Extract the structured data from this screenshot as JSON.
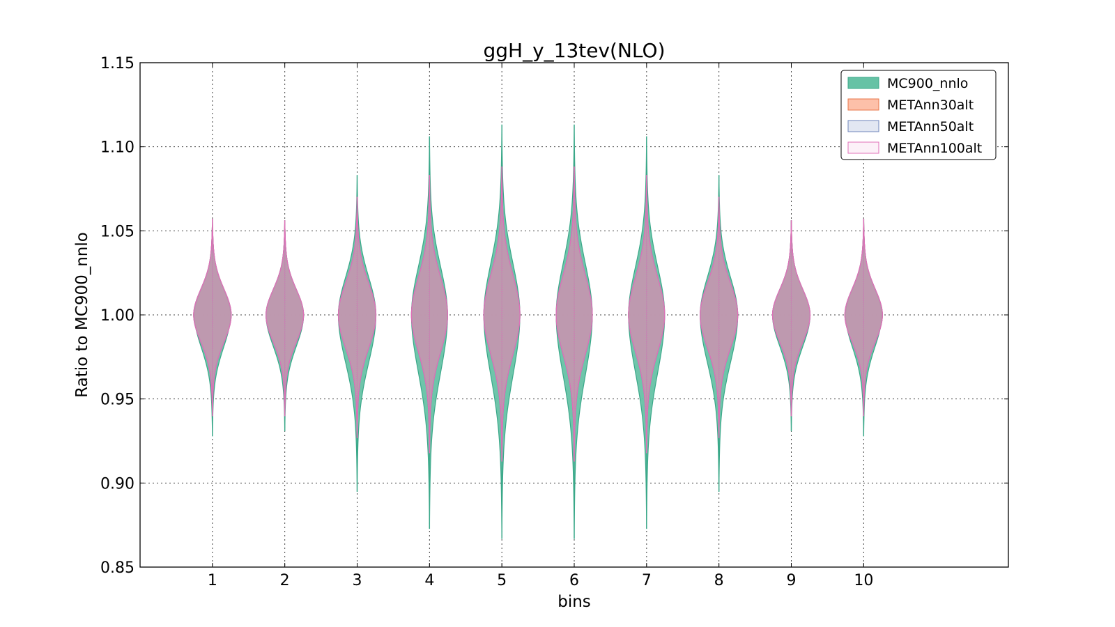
{
  "chart_data": {
    "type": "violin",
    "title": "ggH_y_13tev(NLO)",
    "xlabel": "bins",
    "ylabel": "Ratio to MC900_nnlo",
    "ylim": [
      0.85,
      1.15
    ],
    "yticks": [
      "0.85",
      "0.90",
      "0.95",
      "1.00",
      "1.05",
      "1.10",
      "1.15"
    ],
    "xlim": [
      0,
      12
    ],
    "categories": [
      "1",
      "2",
      "3",
      "4",
      "5",
      "6",
      "7",
      "8",
      "9",
      "10"
    ],
    "grid": true,
    "legend_position": "top-right",
    "series": [
      {
        "name": "MC900_nnlo",
        "fill": "#66c2a5",
        "edge": "#3aa889",
        "min": [
          0.928,
          0.931,
          0.895,
          0.873,
          0.867,
          0.867,
          0.873,
          0.895,
          0.931,
          0.928
        ],
        "max": [
          1.057,
          1.056,
          1.083,
          1.106,
          1.113,
          1.113,
          1.106,
          1.083,
          1.056,
          1.057
        ],
        "width": [
          0.25,
          0.26,
          0.26,
          0.25,
          0.25,
          0.25,
          0.25,
          0.26,
          0.26,
          0.25
        ]
      },
      {
        "name": "METAnn30alt",
        "fill": "#fc8d62",
        "edge": "#e8764a",
        "min": [
          0.94,
          0.94,
          0.927,
          0.918,
          0.913,
          0.913,
          0.918,
          0.927,
          0.94,
          0.94
        ],
        "max": [
          1.057,
          1.056,
          1.07,
          1.083,
          1.088,
          1.088,
          1.083,
          1.07,
          1.056,
          1.057
        ],
        "width": [
          0.26,
          0.26,
          0.26,
          0.25,
          0.25,
          0.25,
          0.25,
          0.26,
          0.26,
          0.26
        ]
      },
      {
        "name": "METAnn50alt",
        "fill": "#8da0cb",
        "edge": "#6f86bb",
        "min": [
          0.94,
          0.94,
          0.927,
          0.918,
          0.913,
          0.913,
          0.918,
          0.927,
          0.94,
          0.94
        ],
        "max": [
          1.057,
          1.056,
          1.07,
          1.083,
          1.088,
          1.088,
          1.083,
          1.07,
          1.056,
          1.057
        ],
        "width": [
          0.26,
          0.26,
          0.26,
          0.25,
          0.25,
          0.25,
          0.25,
          0.26,
          0.26,
          0.26
        ]
      },
      {
        "name": "METAnn100alt",
        "fill": "#e78ac3",
        "edge": "#e070b8",
        "min": [
          0.94,
          0.94,
          0.927,
          0.918,
          0.913,
          0.913,
          0.918,
          0.927,
          0.94,
          0.94
        ],
        "max": [
          1.057,
          1.056,
          1.07,
          1.083,
          1.088,
          1.088,
          1.083,
          1.07,
          1.056,
          1.057
        ],
        "width": [
          0.26,
          0.26,
          0.26,
          0.25,
          0.25,
          0.25,
          0.25,
          0.26,
          0.26,
          0.26
        ]
      }
    ]
  }
}
